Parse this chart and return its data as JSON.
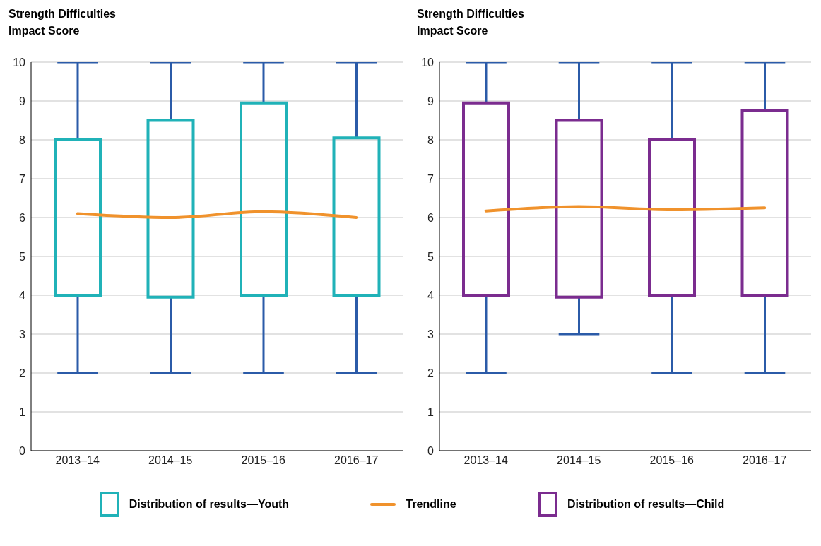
{
  "chart_data": [
    {
      "type": "box",
      "ylabel": "Strength Difficulties Impact Score",
      "categories": [
        "2013–14",
        "2014–15",
        "2015–16",
        "2016–17"
      ],
      "ylim": [
        0,
        10
      ],
      "yticks": [
        0,
        1,
        2,
        3,
        4,
        5,
        6,
        7,
        8,
        9,
        10
      ],
      "grid": "y",
      "legend": "bottom",
      "series": [
        {
          "name": "Distribution of results—Youth",
          "color": "#20b2b8",
          "boxes": [
            {
              "low": 2,
              "q1": 4,
              "q3": 8,
              "high": 10
            },
            {
              "low": 2,
              "q1": 3.95,
              "q3": 8.5,
              "high": 10
            },
            {
              "low": 2,
              "q1": 4,
              "q3": 8.95,
              "high": 10
            },
            {
              "low": 2,
              "q1": 4,
              "q3": 8.05,
              "high": 10
            }
          ]
        },
        {
          "type": "line",
          "name": "Trendline",
          "color": "#f0922c",
          "values": [
            6.1,
            6.0,
            6.15,
            6.0
          ]
        }
      ]
    },
    {
      "type": "box",
      "ylabel": "Strength Difficulties Impact Score",
      "categories": [
        "2013–14",
        "2014–15",
        "2015–16",
        "2016–17"
      ],
      "ylim": [
        0,
        10
      ],
      "yticks": [
        0,
        1,
        2,
        3,
        4,
        5,
        6,
        7,
        8,
        9,
        10
      ],
      "grid": "y",
      "legend": "bottom",
      "series": [
        {
          "name": "Distribution of results—Child",
          "color": "#7b2c8f",
          "boxes": [
            {
              "low": 2,
              "q1": 4,
              "q3": 8.95,
              "high": 10
            },
            {
              "low": 3,
              "q1": 3.95,
              "q3": 8.5,
              "high": 10
            },
            {
              "low": 2,
              "q1": 4,
              "q3": 8,
              "high": 10
            },
            {
              "low": 2,
              "q1": 4,
              "q3": 8.75,
              "high": 10
            }
          ]
        },
        {
          "type": "line",
          "color": "#f0922c",
          "values": [
            6.17,
            6.28,
            6.2,
            6.25
          ]
        }
      ]
    }
  ]
}
